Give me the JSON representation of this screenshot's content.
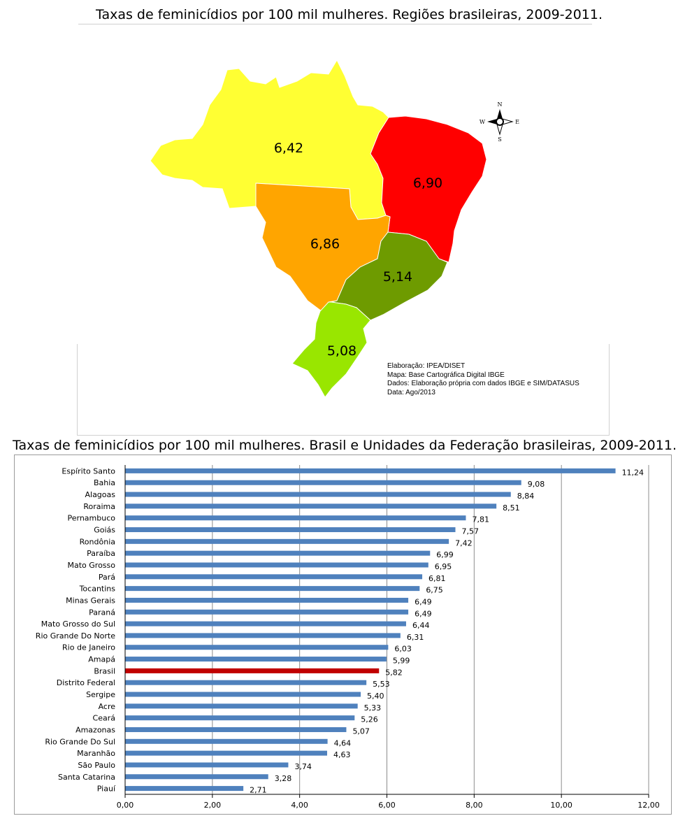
{
  "map": {
    "title": "Taxas de feminicídios por 100 mil mulheres. Regiões brasileiras, 2009-2011.",
    "regions": [
      {
        "id": "norte",
        "value": "6,42",
        "color": "#ffff33"
      },
      {
        "id": "nordeste",
        "value": "6,90",
        "color": "#ff0000"
      },
      {
        "id": "centro-oeste",
        "value": "6,86",
        "color": "#ffa500"
      },
      {
        "id": "sudeste",
        "value": "5,14",
        "color": "#6e9b00"
      },
      {
        "id": "sul",
        "value": "5,08",
        "color": "#99e600"
      }
    ],
    "compass": {
      "n": "N",
      "s": "S",
      "e": "E",
      "w": "W"
    },
    "credits": [
      "Elaboração: IPEA/DISET",
      "Mapa: Base Cartográfica Digital IBGE",
      "Dados: Elaboração própria com dados IBGE e SIM/DATASUS",
      "Data: Ago/2013"
    ]
  },
  "chart_data": {
    "type": "bar",
    "orientation": "horizontal",
    "title": "Taxas de feminicídios por 100 mil mulheres. Brasil e Unidades da Federação brasileiras, 2009-2011.",
    "categories": [
      "Espírito Santo",
      "Bahia",
      "Alagoas",
      "Roraima",
      "Pernambuco",
      "Goiás",
      "Rondônia",
      "Paraíba",
      "Mato Grosso",
      "Pará",
      "Tocantins",
      "Minas Gerais",
      "Paraná",
      "Mato Grosso do Sul",
      "Rio Grande Do Norte",
      "Rio de Janeiro",
      "Amapá",
      "Brasil",
      "Distrito Federal",
      "Sergipe",
      "Acre",
      "Ceará",
      "Amazonas",
      "Rio Grande Do Sul",
      "Maranhão",
      "São Paulo",
      "Santa Catarina",
      "Piauí"
    ],
    "values": [
      11.24,
      9.08,
      8.84,
      8.51,
      7.81,
      7.57,
      7.42,
      6.99,
      6.95,
      6.81,
      6.75,
      6.49,
      6.49,
      6.44,
      6.31,
      6.03,
      5.99,
      5.82,
      5.53,
      5.4,
      5.33,
      5.26,
      5.07,
      4.64,
      4.63,
      3.74,
      3.28,
      2.71
    ],
    "value_labels": [
      "11,24",
      "9,08",
      "8,84",
      "8,51",
      "7,81",
      "7,57",
      "7,42",
      "6,99",
      "6,95",
      "6,81",
      "6,75",
      "6,49",
      "6,49",
      "6,44",
      "6,31",
      "6,03",
      "5,99",
      "5,82",
      "5,53",
      "5,40",
      "5,33",
      "5,26",
      "5,07",
      "4,64",
      "4,63",
      "3,74",
      "3,28",
      "2,71"
    ],
    "xlim": [
      0,
      12
    ],
    "xticks": [
      0,
      2,
      4,
      6,
      8,
      10,
      12
    ],
    "xtick_labels": [
      "0,00",
      "2,00",
      "4,00",
      "6,00",
      "8,00",
      "10,00",
      "12,00"
    ],
    "grid": true,
    "bar_color": "#4f81bd",
    "highlight_category": "Brasil",
    "highlight_color": "#c00000"
  }
}
